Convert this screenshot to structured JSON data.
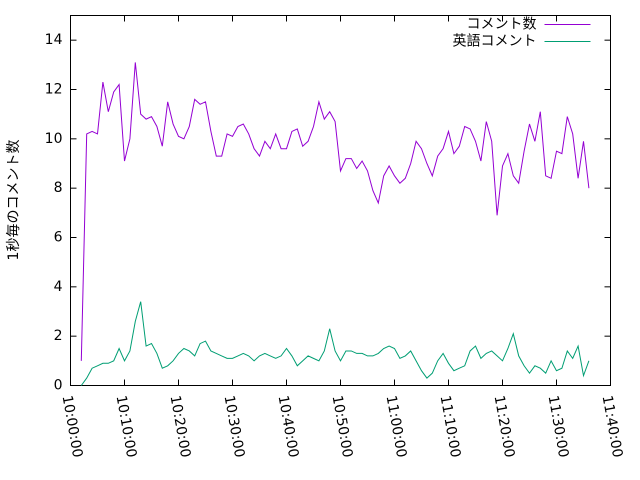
{
  "chart_data": {
    "type": "line",
    "y_label": "1秒毎のコメント数",
    "x": [
      "10:02:00",
      "10:03:00",
      "10:04:00",
      "10:05:00",
      "10:06:00",
      "10:07:00",
      "10:08:00",
      "10:09:00",
      "10:10:00",
      "10:11:00",
      "10:12:00",
      "10:13:00",
      "10:14:00",
      "10:15:00",
      "10:16:00",
      "10:17:00",
      "10:18:00",
      "10:19:00",
      "10:20:00",
      "10:21:00",
      "10:22:00",
      "10:23:00",
      "10:24:00",
      "10:25:00",
      "10:26:00",
      "10:27:00",
      "10:28:00",
      "10:29:00",
      "10:30:00",
      "10:31:00",
      "10:32:00",
      "10:33:00",
      "10:34:00",
      "10:35:00",
      "10:36:00",
      "10:37:00",
      "10:38:00",
      "10:39:00",
      "10:40:00",
      "10:41:00",
      "10:42:00",
      "10:43:00",
      "10:44:00",
      "10:45:00",
      "10:46:00",
      "10:47:00",
      "10:48:00",
      "10:49:00",
      "10:50:00",
      "10:51:00",
      "10:52:00",
      "10:53:00",
      "10:54:00",
      "10:55:00",
      "10:56:00",
      "10:57:00",
      "10:58:00",
      "10:59:00",
      "11:00:00",
      "11:01:00",
      "11:02:00",
      "11:03:00",
      "11:04:00",
      "11:05:00",
      "11:06:00",
      "11:07:00",
      "11:08:00",
      "11:09:00",
      "11:10:00",
      "11:11:00",
      "11:12:00",
      "11:13:00",
      "11:14:00",
      "11:15:00",
      "11:16:00",
      "11:17:00",
      "11:18:00",
      "11:19:00",
      "11:20:00",
      "11:21:00",
      "11:22:00",
      "11:23:00",
      "11:24:00",
      "11:25:00",
      "11:26:00",
      "11:27:00",
      "11:28:00",
      "11:29:00",
      "11:30:00",
      "11:31:00",
      "11:32:00",
      "11:33:00",
      "11:34:00",
      "11:35:00",
      "11:36:00"
    ],
    "series": [
      {
        "name": "コメント数",
        "color": "#9400d3",
        "values": [
          1.0,
          10.2,
          10.3,
          10.2,
          12.3,
          11.1,
          11.9,
          12.2,
          9.1,
          10.0,
          13.1,
          11.0,
          10.8,
          10.9,
          10.5,
          9.7,
          11.5,
          10.6,
          10.1,
          10.0,
          10.5,
          11.6,
          11.4,
          11.5,
          10.3,
          9.3,
          9.3,
          10.2,
          10.1,
          10.5,
          10.6,
          10.2,
          9.6,
          9.3,
          9.9,
          9.6,
          10.2,
          9.6,
          9.6,
          10.3,
          10.4,
          9.7,
          9.9,
          10.5,
          11.5,
          10.8,
          11.1,
          10.7,
          8.7,
          9.2,
          9.2,
          8.8,
          9.1,
          8.7,
          7.9,
          7.4,
          8.5,
          8.9,
          8.5,
          8.2,
          8.4,
          9.0,
          9.9,
          9.6,
          9.0,
          8.5,
          9.3,
          9.6,
          10.3,
          9.4,
          9.7,
          10.5,
          10.4,
          9.9,
          9.1,
          10.7,
          9.9,
          6.9,
          8.9,
          9.4,
          8.5,
          8.2,
          9.5,
          10.6,
          9.9,
          11.1,
          8.5,
          8.4,
          9.5,
          9.4,
          10.9,
          10.2,
          8.4,
          9.9,
          8.0
        ]
      },
      {
        "name": "英語コメント",
        "color": "#009e73",
        "values": [
          0.0,
          0.3,
          0.7,
          0.8,
          0.9,
          0.9,
          1.0,
          1.5,
          1.0,
          1.4,
          2.6,
          3.4,
          1.6,
          1.7,
          1.3,
          0.7,
          0.8,
          1.0,
          1.3,
          1.5,
          1.4,
          1.2,
          1.7,
          1.8,
          1.4,
          1.3,
          1.2,
          1.1,
          1.1,
          1.2,
          1.3,
          1.2,
          1.0,
          1.2,
          1.3,
          1.2,
          1.1,
          1.2,
          1.5,
          1.2,
          0.8,
          1.0,
          1.2,
          1.1,
          1.0,
          1.4,
          2.3,
          1.4,
          1.0,
          1.4,
          1.4,
          1.3,
          1.3,
          1.2,
          1.2,
          1.3,
          1.5,
          1.6,
          1.5,
          1.1,
          1.2,
          1.4,
          1.0,
          0.6,
          0.3,
          0.5,
          1.0,
          1.3,
          0.9,
          0.6,
          0.7,
          0.8,
          1.4,
          1.6,
          1.1,
          1.3,
          1.4,
          1.2,
          1.0,
          1.5,
          2.1,
          1.2,
          0.8,
          0.5,
          0.8,
          0.7,
          0.5,
          1.0,
          0.6,
          0.7,
          1.4,
          1.1,
          1.6,
          0.4,
          1.0
        ]
      }
    ],
    "xlim": [
      "10:00:00",
      "11:40:00"
    ],
    "xticks": [
      "10:00:00",
      "10:10:00",
      "10:20:00",
      "10:30:00",
      "10:40:00",
      "10:50:00",
      "11:00:00",
      "11:10:00",
      "11:20:00",
      "11:30:00",
      "11:40:00"
    ],
    "ylim": [
      0,
      15
    ],
    "yticks": [
      0,
      2,
      4,
      6,
      8,
      10,
      12,
      14
    ],
    "legend": "top-right"
  }
}
